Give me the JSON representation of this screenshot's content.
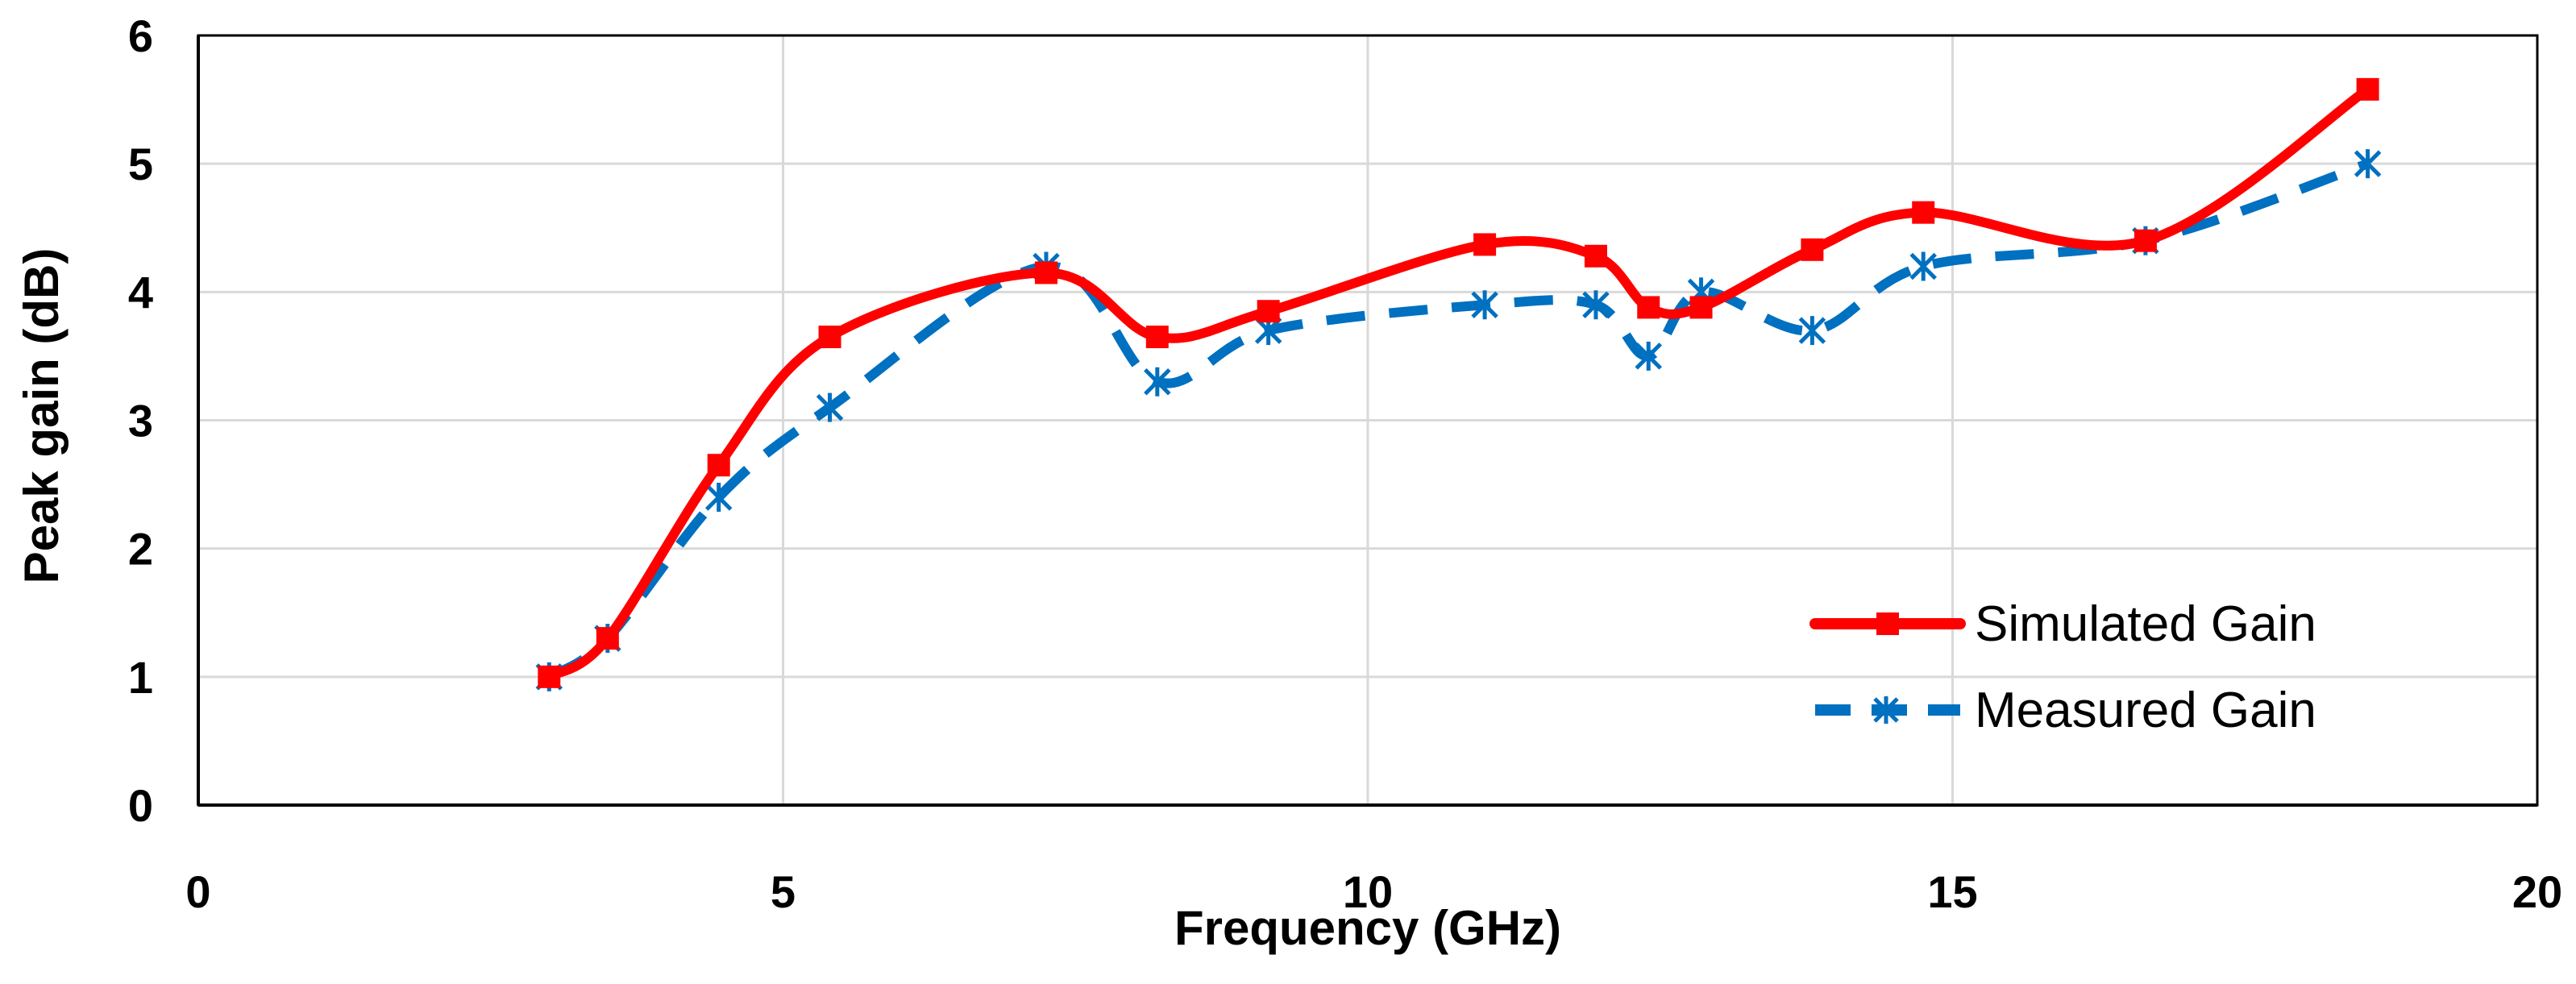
{
  "chart_data": {
    "type": "line",
    "title": "",
    "xlabel": "Frequency (GHz)",
    "ylabel": "Peak gain (dB)",
    "xlim": [
      0,
      20
    ],
    "ylim": [
      0,
      6
    ],
    "xticks": [
      0,
      5,
      10,
      15,
      20
    ],
    "yticks": [
      0,
      1,
      2,
      3,
      4,
      5,
      6
    ],
    "grid": true,
    "legend_position": "bottom-right",
    "series": [
      {
        "name": "Simulated Gain",
        "color": "#ff0000",
        "line_style": "solid",
        "marker": "square",
        "x": [
          3.0,
          3.5,
          4.45,
          5.4,
          7.25,
          8.2,
          9.15,
          11.0,
          11.95,
          12.4,
          12.85,
          13.8,
          14.75,
          16.65,
          18.55
        ],
        "y": [
          1.0,
          1.3,
          2.65,
          3.65,
          4.15,
          3.65,
          3.85,
          4.37,
          4.28,
          3.88,
          3.88,
          4.33,
          4.62,
          4.4,
          5.58
        ]
      },
      {
        "name": "Measured Gain",
        "color": "#0070c0",
        "line_style": "dashed",
        "marker": "asterisk",
        "x": [
          3.0,
          3.5,
          4.45,
          5.4,
          7.25,
          8.2,
          9.15,
          11.0,
          11.95,
          12.4,
          12.85,
          13.8,
          14.75,
          16.65,
          18.55
        ],
        "y": [
          1.0,
          1.3,
          2.4,
          3.1,
          4.2,
          3.3,
          3.7,
          3.9,
          3.9,
          3.5,
          4.0,
          3.7,
          4.2,
          4.4,
          5.0
        ]
      }
    ]
  }
}
